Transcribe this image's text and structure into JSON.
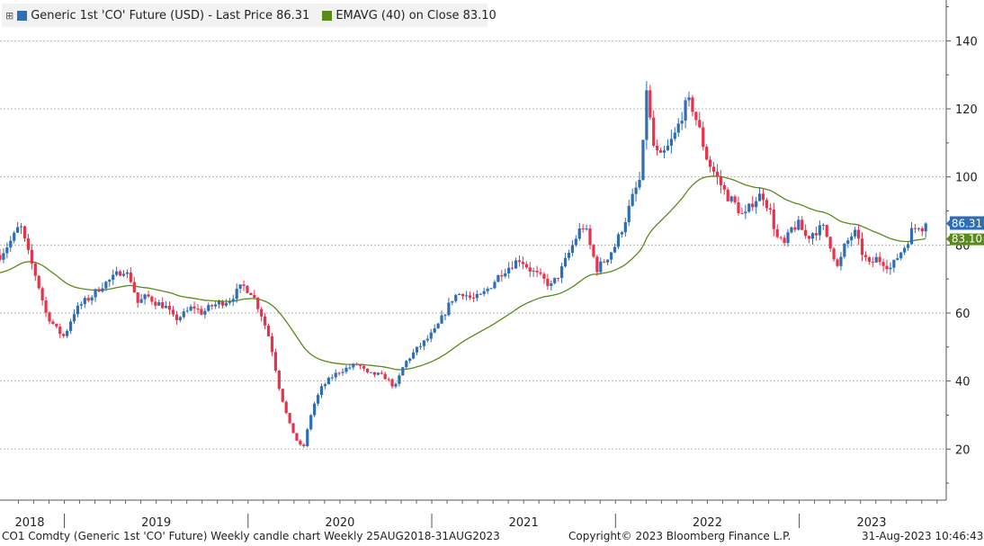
{
  "legend": {
    "pin_icon": "pin-icon",
    "series1": {
      "label": "Generic 1st 'CO' Future (USD) - Last Price 86.31",
      "color": "#2f6db5"
    },
    "series2": {
      "label": "EMAVG (40)  on Close 83.10",
      "color": "#5a8a1a"
    }
  },
  "footer": {
    "left": "CO1 Comdty (Generic 1st 'CO' Future) Weekly candle chart  Weekly 25AUG2018-31AUG2023",
    "center": "Copyright© 2023 Bloomberg Finance L.P.",
    "right": "31-Aug-2023 10:46:43"
  },
  "colors": {
    "up": "#2f6db5",
    "down": "#e8314a",
    "ema": "#5a8a1a",
    "last_price_tag": "#2f6db5",
    "ema_tag": "#5a8a1a"
  },
  "chart_data": {
    "type": "candlestick",
    "title": "Generic 1st 'CO' Future (USD) Weekly candle chart",
    "ylim": [
      5,
      152
    ],
    "yticks": [
      20,
      40,
      60,
      80,
      100,
      120,
      140
    ],
    "xlim": [
      2018.65,
      2023.8
    ],
    "year_labels": [
      "2018",
      "2019",
      "2020",
      "2021",
      "2022",
      "2023"
    ],
    "year_boundaries": [
      2019.0,
      2020.0,
      2021.0,
      2022.0,
      2023.0
    ],
    "last_price": 86.31,
    "last_price_label": "86.31",
    "ema_last": 83.1,
    "ema_last_label": "83.10",
    "close_anchors": [
      [
        2018.65,
        77
      ],
      [
        2018.72,
        82
      ],
      [
        2018.76,
        86
      ],
      [
        2018.8,
        78
      ],
      [
        2018.85,
        70
      ],
      [
        2018.9,
        60
      ],
      [
        2018.96,
        55
      ],
      [
        2019.0,
        53
      ],
      [
        2019.05,
        60
      ],
      [
        2019.1,
        63
      ],
      [
        2019.15,
        65
      ],
      [
        2019.2,
        68
      ],
      [
        2019.26,
        70
      ],
      [
        2019.3,
        72
      ],
      [
        2019.32,
        73
      ],
      [
        2019.36,
        70
      ],
      [
        2019.4,
        63
      ],
      [
        2019.45,
        65
      ],
      [
        2019.5,
        63
      ],
      [
        2019.55,
        62
      ],
      [
        2019.6,
        58
      ],
      [
        2019.66,
        60
      ],
      [
        2019.7,
        62
      ],
      [
        2019.75,
        60
      ],
      [
        2019.8,
        62
      ],
      [
        2019.85,
        63
      ],
      [
        2019.9,
        64
      ],
      [
        2019.97,
        68
      ],
      [
        2020.02,
        66
      ],
      [
        2020.07,
        60
      ],
      [
        2020.12,
        52
      ],
      [
        2020.17,
        38
      ],
      [
        2020.22,
        28
      ],
      [
        2020.27,
        22
      ],
      [
        2020.3,
        20
      ],
      [
        2020.35,
        32
      ],
      [
        2020.4,
        38
      ],
      [
        2020.45,
        41
      ],
      [
        2020.5,
        43
      ],
      [
        2020.55,
        44
      ],
      [
        2020.6,
        45
      ],
      [
        2020.65,
        42
      ],
      [
        2020.7,
        42
      ],
      [
        2020.75,
        41
      ],
      [
        2020.8,
        38
      ],
      [
        2020.85,
        45
      ],
      [
        2020.88,
        47
      ],
      [
        2020.93,
        50
      ],
      [
        2020.97,
        52
      ],
      [
        2021.02,
        55
      ],
      [
        2021.07,
        60
      ],
      [
        2021.12,
        65
      ],
      [
        2021.17,
        66
      ],
      [
        2021.22,
        64
      ],
      [
        2021.27,
        65
      ],
      [
        2021.32,
        68
      ],
      [
        2021.38,
        72
      ],
      [
        2021.43,
        74
      ],
      [
        2021.48,
        76
      ],
      [
        2021.53,
        73
      ],
      [
        2021.6,
        70
      ],
      [
        2021.65,
        68
      ],
      [
        2021.7,
        72
      ],
      [
        2021.75,
        78
      ],
      [
        2021.8,
        84
      ],
      [
        2021.83,
        86
      ],
      [
        2021.86,
        80
      ],
      [
        2021.9,
        73
      ],
      [
        2021.95,
        76
      ],
      [
        2022.0,
        80
      ],
      [
        2022.05,
        87
      ],
      [
        2022.1,
        95
      ],
      [
        2022.14,
        100
      ],
      [
        2022.17,
        127
      ],
      [
        2022.2,
        110
      ],
      [
        2022.24,
        105
      ],
      [
        2022.28,
        108
      ],
      [
        2022.33,
        113
      ],
      [
        2022.37,
        120
      ],
      [
        2022.41,
        122
      ],
      [
        2022.45,
        115
      ],
      [
        2022.5,
        105
      ],
      [
        2022.55,
        100
      ],
      [
        2022.6,
        95
      ],
      [
        2022.65,
        92
      ],
      [
        2022.7,
        88
      ],
      [
        2022.75,
        93
      ],
      [
        2022.8,
        95
      ],
      [
        2022.84,
        90
      ],
      [
        2022.88,
        82
      ],
      [
        2022.92,
        80
      ],
      [
        2022.96,
        85
      ],
      [
        2023.0,
        86
      ],
      [
        2023.04,
        82
      ],
      [
        2023.08,
        84
      ],
      [
        2023.13,
        85
      ],
      [
        2023.17,
        80
      ],
      [
        2023.21,
        73
      ],
      [
        2023.25,
        80
      ],
      [
        2023.3,
        84
      ],
      [
        2023.34,
        78
      ],
      [
        2023.38,
        74
      ],
      [
        2023.42,
        76
      ],
      [
        2023.46,
        75
      ],
      [
        2023.5,
        73
      ],
      [
        2023.54,
        77
      ],
      [
        2023.58,
        80
      ],
      [
        2023.61,
        84
      ],
      [
        2023.65,
        86
      ],
      [
        2023.68,
        85
      ],
      [
        2023.7,
        86.31
      ]
    ]
  }
}
